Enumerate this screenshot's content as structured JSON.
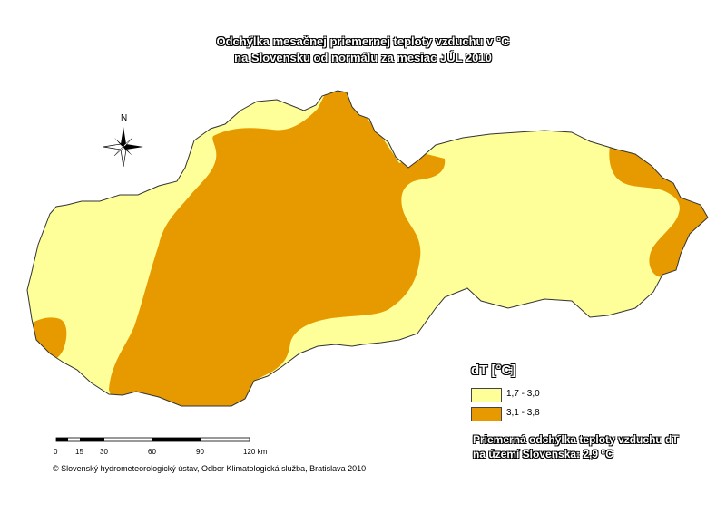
{
  "map": {
    "title_line1": "Odchýlka mesačnej priemernej teploty vzduchu v °C",
    "title_line2": "na Slovensku od normálu za mesiac JÚL 2010",
    "north_label": "N"
  },
  "legend": {
    "title": "dT [°C]",
    "items": [
      {
        "label": "1,7 - 3,0",
        "color": "#ffff99"
      },
      {
        "label": "3,1 - 3,8",
        "color": "#e69a00"
      }
    ]
  },
  "scale_bar": {
    "labels": [
      "0",
      "15",
      "30",
      "60",
      "90",
      "120 km"
    ],
    "values_km": [
      0,
      15,
      30,
      60,
      90,
      120
    ]
  },
  "average": {
    "line1": "Priemerná odchýlka teploty vzduchu dT",
    "line2": "na území Slovenska: 2,9 °C"
  },
  "footer": {
    "copyright": "© Slovenský hydrometeorologický ústav, Odbor Klimatologická služba, Bratislava 2010"
  }
}
